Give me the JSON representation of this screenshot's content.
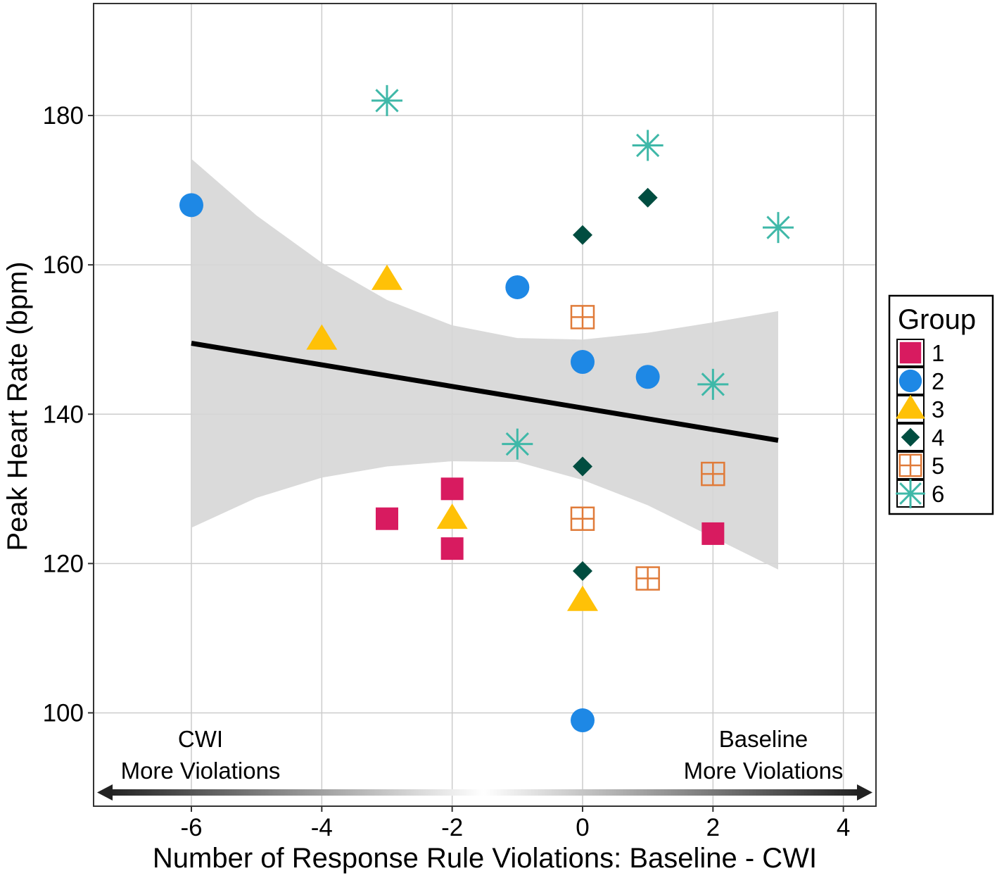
{
  "chart_data": {
    "type": "scatter",
    "xlabel": "Number of Response Rule Violations: Baseline - CWI",
    "ylabel": "Peak Heart Rate (bpm)",
    "xlim": [
      -7.5,
      4.5
    ],
    "ylim": [
      87.5,
      195
    ],
    "x_ticks": [
      -6,
      -4,
      -2,
      0,
      2,
      4
    ],
    "y_ticks": [
      100,
      120,
      140,
      160,
      180
    ],
    "x_tick_labels": [
      "-6",
      "-4",
      "-2",
      "0",
      "2",
      "4"
    ],
    "y_tick_labels": [
      "100",
      "120",
      "140",
      "160",
      "180"
    ],
    "grid": true,
    "legend": {
      "title": "Group",
      "position": "right",
      "entries": [
        "1",
        "2",
        "3",
        "4",
        "5",
        "6"
      ]
    },
    "annotations": {
      "left": [
        "CWI",
        "More Violations"
      ],
      "right": [
        "Baseline",
        "More Violations"
      ]
    },
    "regression": {
      "x_start": -6,
      "y_start": 149.5,
      "x_end": 3,
      "y_end": 136.5
    },
    "confidence_band": {
      "x": [
        -6,
        -5,
        -4,
        -3,
        -2,
        -1,
        0,
        1,
        2,
        3
      ],
      "upper": [
        174.2,
        166.6,
        160.3,
        155.3,
        151.9,
        150.2,
        150.0,
        150.9,
        152.3,
        153.8
      ],
      "lower": [
        124.8,
        128.8,
        131.5,
        133.0,
        133.7,
        133.6,
        131.2,
        127.8,
        123.5,
        119.2
      ]
    },
    "series": [
      {
        "name": "1",
        "shape": "square",
        "color": "#d81b60",
        "points": [
          [
            -3,
            126
          ],
          [
            -2,
            130
          ],
          [
            -2,
            122
          ],
          [
            2,
            124
          ]
        ]
      },
      {
        "name": "2",
        "shape": "circle",
        "color": "#1e88e5",
        "points": [
          [
            -6,
            168
          ],
          [
            -1,
            157
          ],
          [
            0,
            147
          ],
          [
            1,
            145
          ],
          [
            0,
            99
          ]
        ]
      },
      {
        "name": "3",
        "shape": "triangle",
        "color": "#ffc107",
        "points": [
          [
            -3,
            158
          ],
          [
            -4,
            150
          ],
          [
            -2,
            126
          ],
          [
            0,
            115
          ]
        ]
      },
      {
        "name": "4",
        "shape": "diamond",
        "color": "#004d40",
        "points": [
          [
            1,
            169
          ],
          [
            0,
            164
          ],
          [
            0,
            133
          ],
          [
            0,
            119
          ]
        ]
      },
      {
        "name": "5",
        "shape": "square-cross",
        "color": "#e07b39",
        "points": [
          [
            0,
            153
          ],
          [
            2,
            132
          ],
          [
            0,
            126
          ],
          [
            1,
            118
          ]
        ]
      },
      {
        "name": "6",
        "shape": "asterisk",
        "color": "#3fb8a8",
        "points": [
          [
            -3,
            182
          ],
          [
            1,
            176
          ],
          [
            3,
            165
          ],
          [
            2,
            144
          ],
          [
            -1,
            136
          ]
        ]
      }
    ]
  }
}
